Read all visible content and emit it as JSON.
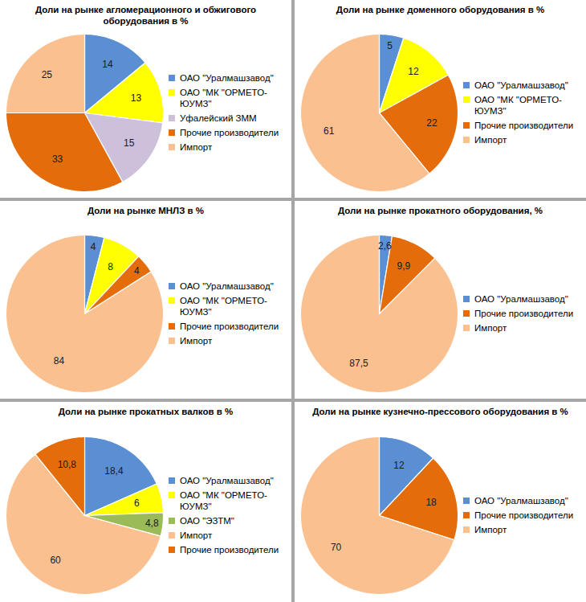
{
  "chart_data": [
    {
      "type": "pie",
      "title": "Доли на рынке агломерационного и обжигового оборудования в %",
      "categories": [
        "ОАО \"Уралмашзавод\"",
        "ОАО \"МК \"ОРМЕТО-ЮУМЗ\"",
        "Уфалейский ЗММ",
        "Прочие производители",
        "Импорт"
      ],
      "values": [
        14,
        13,
        15,
        33,
        25
      ],
      "colors": [
        "#5b8fd4",
        "#ffff00",
        "#ccc0da",
        "#e46c0a",
        "#fac090"
      ],
      "data_labels": true,
      "legend": "right"
    },
    {
      "type": "pie",
      "title": "Доли на рынке доменного оборудования в %",
      "categories": [
        "ОАО \"Уралмашзавод\"",
        "ОАО \"МК \"ОРМЕТО-ЮУМЗ\"",
        "Прочие производители",
        "Импорт"
      ],
      "values": [
        5,
        12,
        22,
        61
      ],
      "colors": [
        "#5b8fd4",
        "#ffff00",
        "#e46c0a",
        "#fac090"
      ],
      "data_labels": true,
      "legend": "right"
    },
    {
      "type": "pie",
      "title": "Доли на рынке МНЛЗ в %",
      "categories": [
        "ОАО \"Уралмашзавод\"",
        "ОАО \"МК \"ОРМЕТО-ЮУМЗ\"",
        "Прочие производители",
        "Импорт"
      ],
      "values": [
        4,
        8,
        4,
        84
      ],
      "colors": [
        "#5b8fd4",
        "#ffff00",
        "#e46c0a",
        "#fac090"
      ],
      "data_labels": true,
      "legend": "right"
    },
    {
      "type": "pie",
      "title": "Доли на рынке прокатного оборудования, %",
      "categories": [
        "ОАО \"Уралмашзавод\"",
        "Прочие производители",
        "Импорт"
      ],
      "values": [
        2.6,
        9.9,
        87.5
      ],
      "value_labels": [
        "2,6",
        "9,9",
        "87,5"
      ],
      "colors": [
        "#5b8fd4",
        "#e46c0a",
        "#fac090"
      ],
      "data_labels": true,
      "legend": "right"
    },
    {
      "type": "pie",
      "title": "Доли на рынке прокатных валков в %",
      "categories": [
        "ОАО \"Уралмашзавод\"",
        "ОАО \"МК \"ОРМЕТО-ЮУМЗ\"",
        "ОАО \"ЭЗТМ\"",
        "Импорт",
        "Прочие производители"
      ],
      "values": [
        18.4,
        6,
        4.8,
        60,
        10.8
      ],
      "value_labels": [
        "18,4",
        "6",
        "4,8",
        "60",
        "10,8"
      ],
      "colors": [
        "#5b8fd4",
        "#ffff00",
        "#9bbb59",
        "#fac090",
        "#e46c0a"
      ],
      "data_labels": true,
      "legend": "right"
    },
    {
      "type": "pie",
      "title": "Доли на рынке кузнечно-прессового оборудования в %",
      "categories": [
        "ОАО \"Уралмашзавод\"",
        "Прочие производители",
        "Импорт"
      ],
      "values": [
        12,
        18,
        70
      ],
      "colors": [
        "#5b8fd4",
        "#e46c0a",
        "#fac090"
      ],
      "data_labels": true,
      "legend": "right"
    }
  ]
}
